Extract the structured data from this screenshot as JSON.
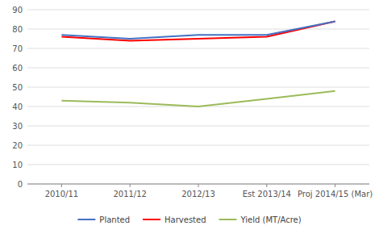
{
  "chart_data": {
    "type": "line",
    "categories": [
      "2010/11",
      "2011/12",
      "2012/13",
      "Est 2013/14",
      "Proj 2014/15 (Mar)"
    ],
    "series": [
      {
        "name": "Planted",
        "color": "#4472C4",
        "values": [
          77,
          75,
          77,
          77,
          84
        ]
      },
      {
        "name": "Harvested",
        "color": "#FF0000",
        "values": [
          76,
          74,
          75,
          76,
          84
        ]
      },
      {
        "name": "Yield (MT/Acre)",
        "color": "#9BBB59",
        "values": [
          43,
          42,
          40,
          44,
          48
        ]
      }
    ],
    "ylim": [
      0,
      90
    ],
    "yticks": [
      0,
      10,
      20,
      30,
      40,
      50,
      60,
      70,
      80,
      90
    ],
    "grid": true,
    "legend": "bottom"
  }
}
